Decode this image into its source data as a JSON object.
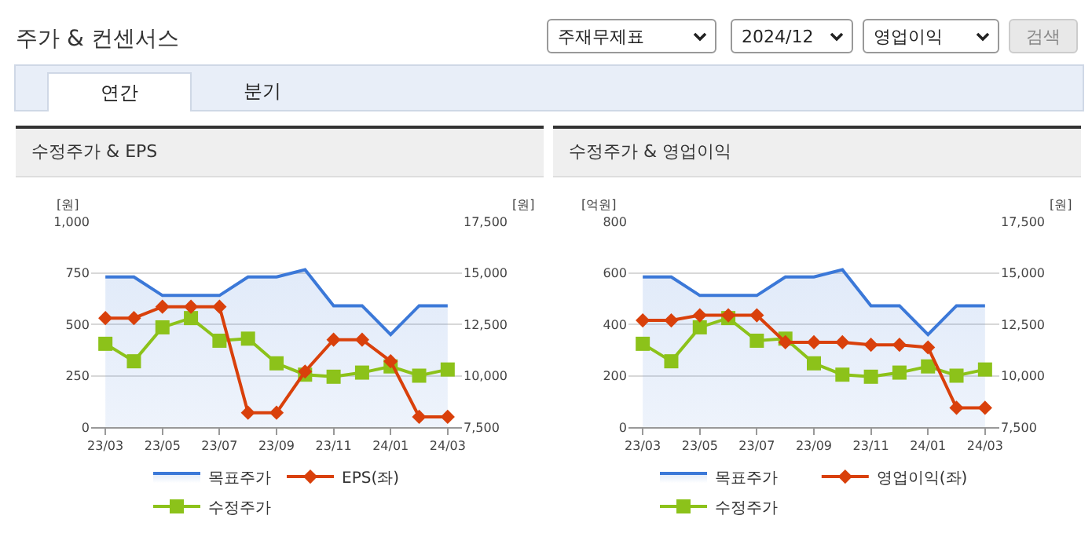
{
  "chart_data": [
    {
      "type": "other",
      "title": "주가 & 컨센서스",
      "annotations": [
        "주재무제표",
        "2024/12",
        "영업이익",
        "검색",
        "연간",
        "분기"
      ]
    },
    {
      "type": "line",
      "title": "수정주가 & EPS",
      "ylabel": "[원]",
      "y2label": "[원]",
      "categories": [
        "23/03",
        null,
        "23/05",
        null,
        "23/07",
        null,
        "23/09",
        null,
        "23/11",
        null,
        "24/01",
        null,
        "24/03"
      ],
      "ylim": [
        0,
        1000
      ],
      "yticks": [
        0,
        250,
        500,
        750,
        {
          "value": 1000,
          "label": "1,000"
        }
      ],
      "y2lim": [
        7500,
        17500
      ],
      "y2ticks": [
        {
          "value": 7500,
          "label": "7,500"
        },
        {
          "value": 10000,
          "label": "10,000"
        },
        {
          "value": 12500,
          "label": "12,500"
        },
        {
          "value": 15000,
          "label": "15,000"
        },
        {
          "value": 17500,
          "label": "17,500"
        }
      ],
      "grid": "y",
      "legend": "bottom",
      "series": [
        {
          "name": "목표주가",
          "type": "area",
          "axis": "y2",
          "color": "#3b78d8",
          "marker": "none",
          "values": [
            14800,
            14800,
            13900,
            13900,
            13900,
            14800,
            14800,
            15150,
            13400,
            13400,
            12000,
            13400,
            13400
          ]
        },
        {
          "name": "EPS(좌)",
          "type": "line",
          "color": "#d9400b",
          "marker": "diamond",
          "values": [
            530,
            530,
            585,
            585,
            585,
            70,
            70,
            270,
            425,
            425,
            320,
            50,
            50
          ]
        },
        {
          "name": "수정주가",
          "type": "line",
          "axis": "y2",
          "color": "#8cc21a",
          "marker": "square",
          "values": [
            11550,
            10700,
            12350,
            12800,
            11700,
            11800,
            10600,
            10050,
            9950,
            10150,
            10450,
            10000,
            10300
          ]
        }
      ]
    },
    {
      "type": "line",
      "title": "수정주가 & 영업이익",
      "ylabel": "[억원]",
      "y2label": "[원]",
      "categories": [
        "23/03",
        null,
        "23/05",
        null,
        "23/07",
        null,
        "23/09",
        null,
        "23/11",
        null,
        "24/01",
        null,
        "24/03"
      ],
      "ylim": [
        0,
        800
      ],
      "yticks": [
        0,
        200,
        400,
        600,
        800
      ],
      "y2lim": [
        7500,
        17500
      ],
      "y2ticks": [
        {
          "value": 7500,
          "label": "7,500"
        },
        {
          "value": 10000,
          "label": "10,000"
        },
        {
          "value": 12500,
          "label": "12,500"
        },
        {
          "value": 15000,
          "label": "15,000"
        },
        {
          "value": 17500,
          "label": "17,500"
        }
      ],
      "grid": "y",
      "legend": "bottom",
      "series": [
        {
          "name": "목표주가",
          "type": "area",
          "axis": "y2",
          "color": "#3b78d8",
          "marker": "none",
          "values": [
            14800,
            14800,
            13900,
            13900,
            13900,
            14800,
            14800,
            15150,
            13400,
            13400,
            12000,
            13400,
            13400
          ]
        },
        {
          "name": "영업이익(좌)",
          "type": "line",
          "color": "#d9400b",
          "marker": "diamond",
          "values": [
            415,
            415,
            435,
            435,
            435,
            330,
            330,
            330,
            320,
            320,
            310,
            75,
            75
          ]
        },
        {
          "name": "수정주가",
          "type": "line",
          "axis": "y2",
          "color": "#8cc21a",
          "marker": "square",
          "values": [
            11550,
            10700,
            12350,
            12800,
            11700,
            11800,
            10600,
            10050,
            9950,
            10150,
            10450,
            10000,
            10300
          ]
        }
      ]
    }
  ]
}
